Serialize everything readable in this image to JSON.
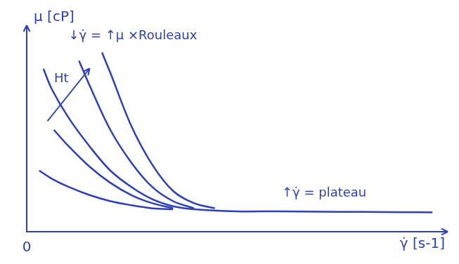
{
  "chart_data": {
    "type": "line",
    "x_label": "γ̇ [s-1]",
    "y_label": "μ [cP]",
    "xlim": [
      0,
      10
    ],
    "ylim": [
      0,
      10
    ],
    "xticks": [
      0
    ],
    "tick_labels": "x",
    "grid": false,
    "color": "#2b3fbf",
    "series": [
      {
        "color": "#2b3fbf",
        "x": [
          0.3,
          0.6,
          1,
          1.5,
          2,
          2.5,
          3,
          3.5
        ],
        "values": [
          3.0,
          2.6,
          2.2,
          1.8,
          1.5,
          1.3,
          1.15,
          1.1
        ]
      },
      {
        "color": "#2b3fbf",
        "x": [
          0.65,
          1,
          1.5,
          2,
          2.5,
          3,
          3.5
        ],
        "values": [
          5.0,
          4.2,
          3.2,
          2.4,
          1.8,
          1.4,
          1.15
        ]
      },
      {
        "color": "#2b3fbf",
        "x": [
          0.4,
          0.6,
          1,
          1.5,
          2,
          2.5,
          3,
          3.5,
          4,
          5,
          6,
          7,
          8,
          9,
          9.7
        ],
        "values": [
          8.0,
          7.0,
          5.6,
          4.2,
          3.0,
          2.2,
          1.6,
          1.25,
          1.1,
          1.0,
          1.0,
          0.98,
          0.97,
          0.96,
          0.95
        ]
      },
      {
        "color": "#2b3fbf",
        "x": [
          1.25,
          1.5,
          2,
          2.5,
          3,
          3.5,
          4
        ],
        "values": [
          8.4,
          7.2,
          5.0,
          3.4,
          2.2,
          1.5,
          1.15
        ]
      },
      {
        "color": "#2b3fbf",
        "x": [
          1.8,
          2,
          2.5,
          3,
          3.5,
          4,
          4.5
        ],
        "values": [
          8.8,
          7.8,
          5.2,
          3.3,
          2.0,
          1.4,
          1.15
        ]
      }
    ],
    "annotations": [
      {
        "text": "↓γ̇ = ↑μ ×Rouleaux",
        "x": 1.0,
        "y": 9.6
      },
      {
        "text": "Ht",
        "x": 1.0,
        "y": 7.5
      },
      {
        "text": "↑γ̇ = plateau",
        "x": 6.1,
        "y": 1.9
      }
    ]
  }
}
